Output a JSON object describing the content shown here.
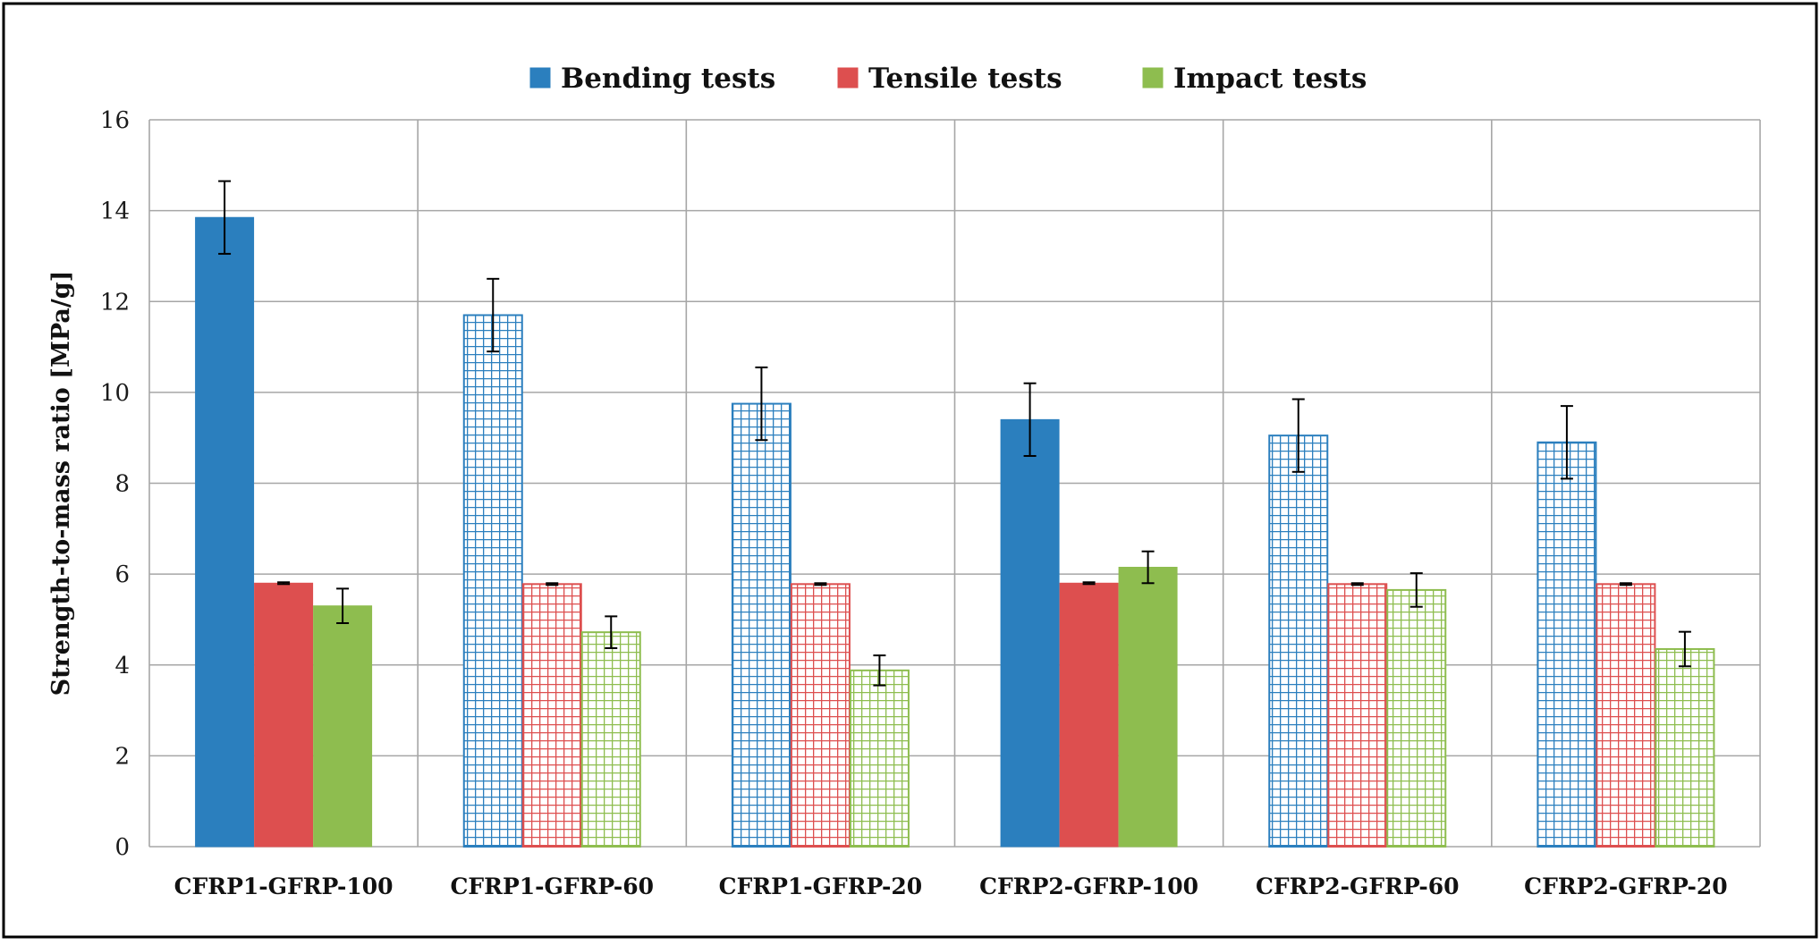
{
  "chart_data": {
    "type": "bar",
    "title": "",
    "xlabel": "",
    "ylabel": "Strength-to-mass ratio  [MPa/g]",
    "ylim": [
      0,
      16
    ],
    "yticks": [
      0,
      2,
      4,
      6,
      8,
      10,
      12,
      14,
      16
    ],
    "grid": true,
    "legend_position": "top",
    "categories": [
      "CFRP1-GFRP-100",
      "CFRP1-GFRP-60",
      "CFRP1-GFRP-20",
      "CFRP2-GFRP-100",
      "CFRP2-GFRP-60",
      "CFRP2-GFRP-20"
    ],
    "fill_patterns": [
      "solid",
      "grid",
      "grid",
      "solid",
      "grid",
      "grid"
    ],
    "series": [
      {
        "name": "Bending tests",
        "color": "#2b7fbe",
        "values": [
          13.85,
          11.7,
          9.75,
          9.4,
          9.05,
          8.9
        ],
        "errors": [
          0.8,
          0.8,
          0.8,
          0.8,
          0.8,
          0.8
        ]
      },
      {
        "name": "Tensile tests",
        "color": "#dd4f4f",
        "values": [
          5.8,
          5.78,
          5.78,
          5.8,
          5.78,
          5.78
        ],
        "errors": [
          0.02,
          0.02,
          0.02,
          0.02,
          0.02,
          0.02
        ]
      },
      {
        "name": "Impact tests",
        "color": "#8ebd4f",
        "values": [
          5.3,
          4.72,
          3.88,
          6.15,
          5.65,
          4.35
        ],
        "errors": [
          0.38,
          0.35,
          0.33,
          0.35,
          0.37,
          0.38
        ]
      }
    ]
  }
}
